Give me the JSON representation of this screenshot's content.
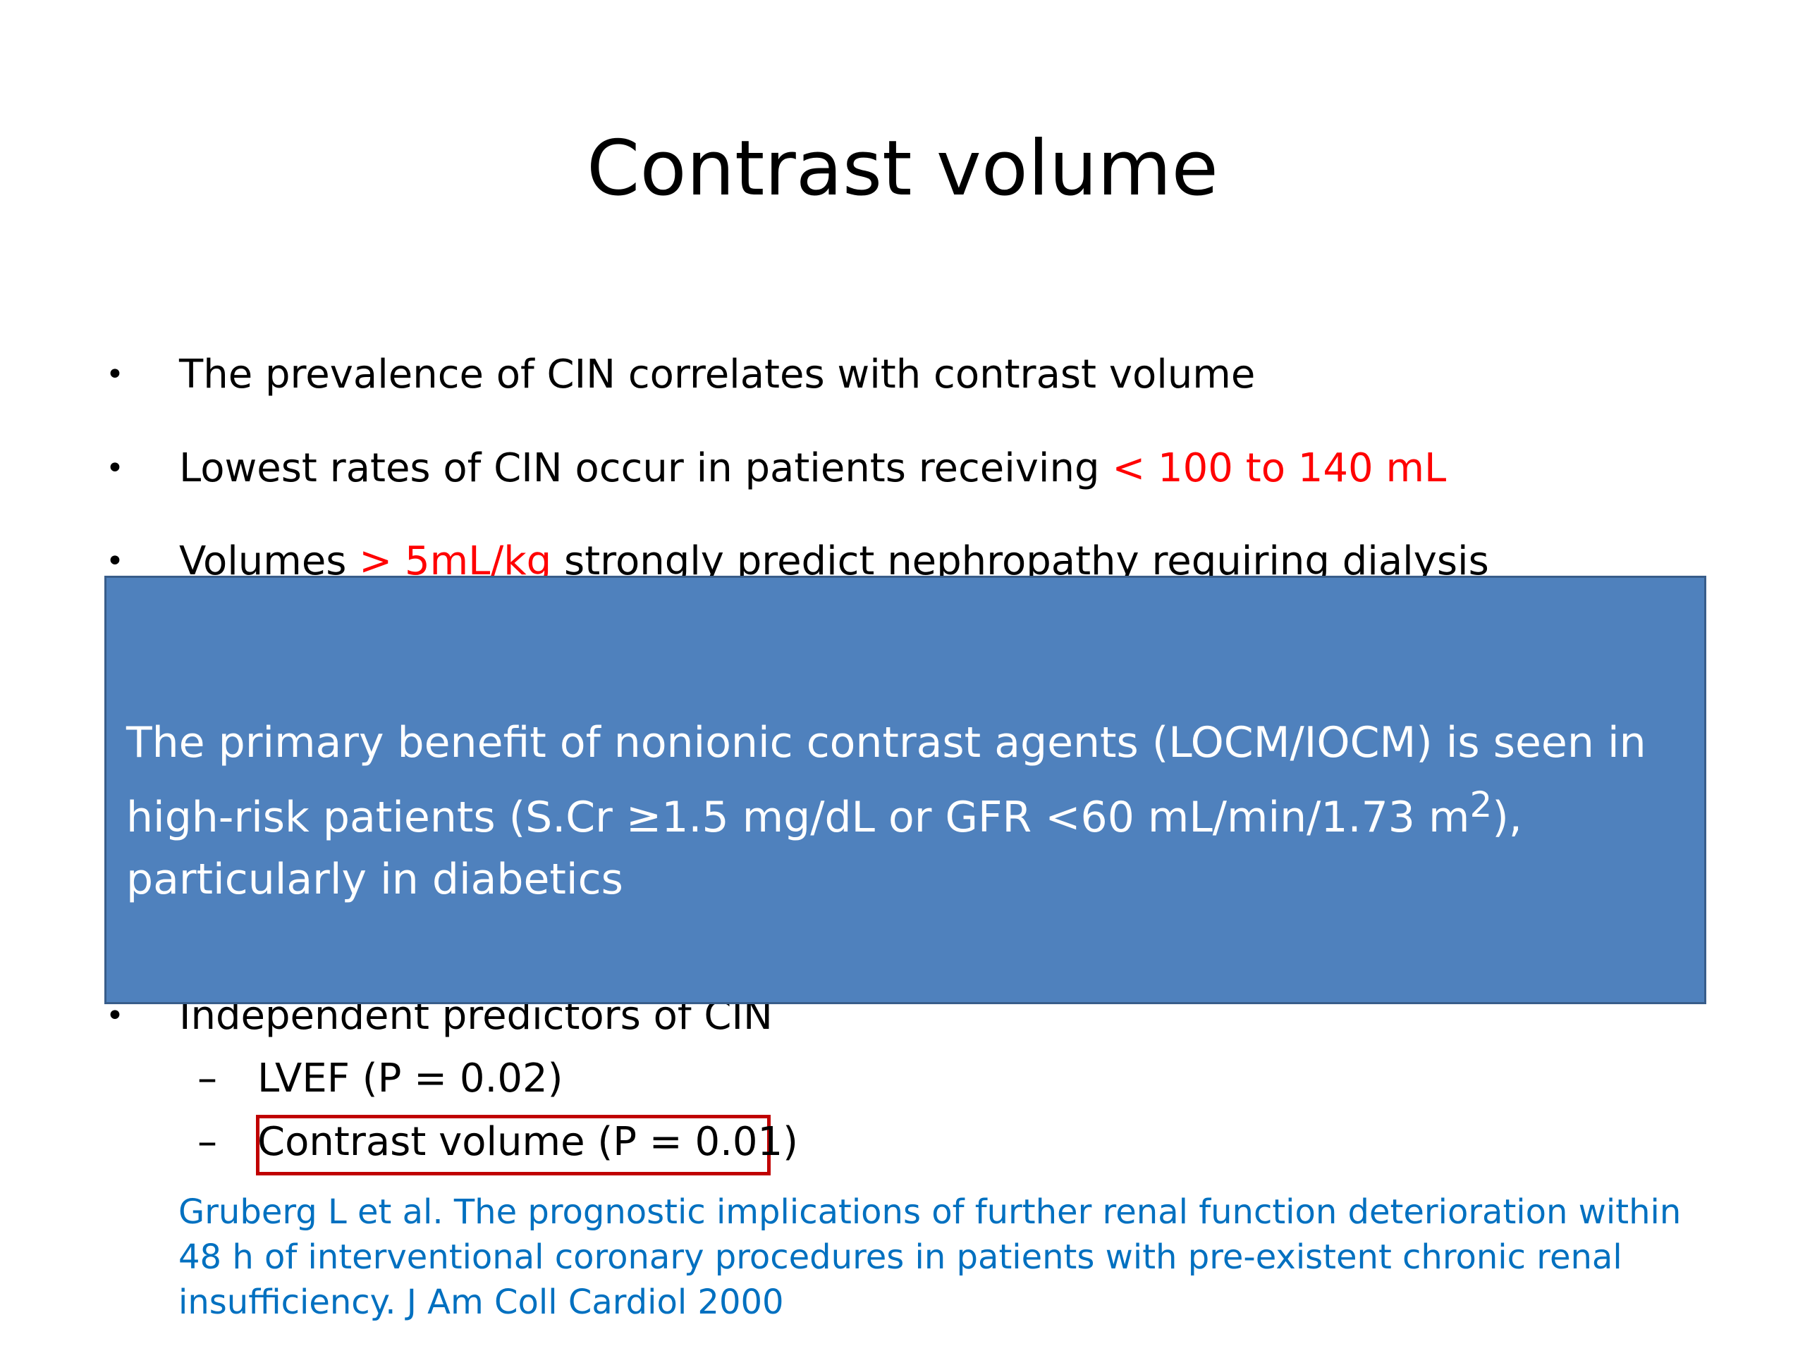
{
  "slide": {
    "title": "Contrast volume"
  },
  "bullets": [
    {
      "text": "The prevalence of CIN correlates with contrast volume"
    },
    {
      "text": "Lowest rates of CIN occur in patients receiving ",
      "highlight": "< 100 to 140 mL"
    },
    {
      "prefix": "Volumes ",
      "highlight": "> 5mL/kg",
      "suffix": " strongly predict nephropathy requiring dialysis"
    },
    {
      "text": "Independent predictors of CIN"
    }
  ],
  "bullet_symbol": "•",
  "dash_symbol": "–",
  "sub_bullets": [
    {
      "text": "LVEF (P = 0.02)"
    },
    {
      "text": "Contrast volume (P = 0.01)"
    }
  ],
  "overlay": {
    "text_before_sup": "The primary benefit of nonionic contrast agents (LOCM/IOCM) is seen in high-risk patients (S.Cr ≥1.5 mg/dL or  GFR <60 mL/min/1.73 m",
    "superscript": "2",
    "text_after_sup": "), particularly in diabetics"
  },
  "reference": {
    "text": "Gruberg L et al. The prognostic implications of further renal function deterioration within 48 h of interventional coronary procedures in patients with pre-existent chronic renal insufficiency. J Am Coll Cardiol 2000"
  },
  "colors": {
    "highlight_red": "#ff0000",
    "overlay_fill": "#4f81bd",
    "overlay_border": "#385d8a",
    "box_outline": "#c00000",
    "reference_blue": "#0070c0"
  }
}
